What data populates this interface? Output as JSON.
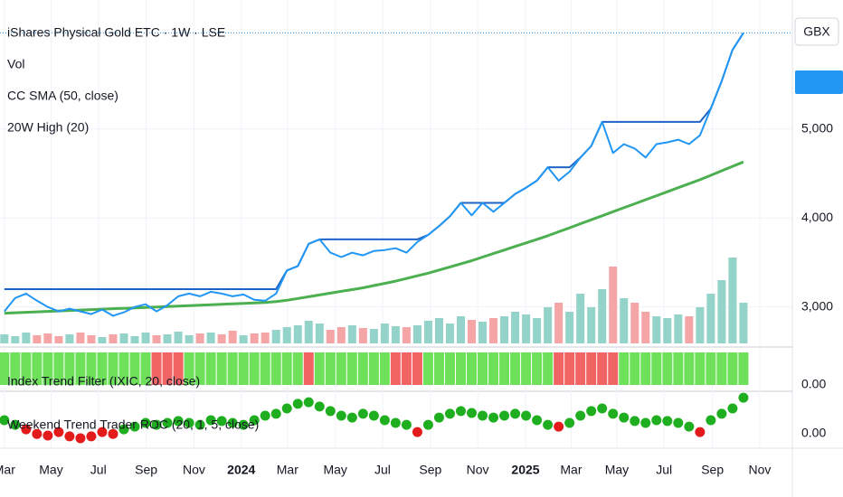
{
  "chart_data": [
    {
      "type": "line",
      "title": "iShares Physical Gold ETC · 1W · LSE",
      "currency": "GBX",
      "x": [
        0,
        2,
        4,
        6,
        8,
        10,
        12,
        14,
        16,
        18,
        20,
        22,
        24,
        26,
        28,
        30,
        32,
        34,
        36,
        38,
        40,
        42,
        44,
        46,
        48,
        50,
        52,
        54,
        56,
        58,
        60,
        62,
        64,
        66,
        68,
        70,
        72,
        74,
        76,
        78,
        80,
        82,
        84,
        86,
        88,
        90,
        92,
        94,
        96,
        98,
        100,
        102,
        104,
        106,
        108,
        110,
        112,
        114,
        116,
        118,
        120,
        122,
        124,
        126,
        128,
        130,
        132,
        134,
        136
      ],
      "xlim": [
        -0.8,
        145
      ],
      "xticks": [
        {
          "value": 0,
          "label": "Mar"
        },
        {
          "value": 8.6,
          "label": "May"
        },
        {
          "value": 17.3,
          "label": "Jul"
        },
        {
          "value": 26.1,
          "label": "Sep"
        },
        {
          "value": 34.9,
          "label": "Nov"
        },
        {
          "value": 43.6,
          "label": "2024"
        },
        {
          "value": 52.1,
          "label": "Mar"
        },
        {
          "value": 60.9,
          "label": "May"
        },
        {
          "value": 69.6,
          "label": "Jul"
        },
        {
          "value": 78.4,
          "label": "Sep"
        },
        {
          "value": 87.1,
          "label": "Nov"
        },
        {
          "value": 95.9,
          "label": "2025"
        },
        {
          "value": 104.3,
          "label": "Mar"
        },
        {
          "value": 112.7,
          "label": "May"
        },
        {
          "value": 121.4,
          "label": "Jul"
        },
        {
          "value": 130.3,
          "label": "Sep"
        },
        {
          "value": 139,
          "label": "Nov"
        }
      ],
      "ylim": [
        2560,
        6450
      ],
      "yticks": [
        {
          "value": 3000,
          "label": "3,000"
        },
        {
          "value": 4000,
          "label": "4,000"
        },
        {
          "value": 5000,
          "label": "5,000"
        }
      ],
      "y2lim": [
        0,
        300
      ],
      "grid": true,
      "series": [
        {
          "type": "bar",
          "name": "Vol",
          "axis": "y2",
          "up_color": "#93d3c9",
          "down_color": "#f5a5a5",
          "values": [
            10,
            8,
            12,
            9,
            11,
            8,
            10,
            12,
            9,
            7,
            10,
            11,
            8,
            12,
            9,
            10,
            13,
            9,
            11,
            12,
            10,
            14,
            9,
            11,
            12,
            15,
            18,
            20,
            25,
            22,
            15,
            18,
            20,
            17,
            16,
            22,
            19,
            18,
            20,
            25,
            28,
            22,
            30,
            26,
            24,
            28,
            30,
            35,
            32,
            28,
            40,
            45,
            35,
            55,
            40,
            60,
            85,
            50,
            45,
            35,
            30,
            28,
            32,
            30,
            40,
            55,
            70,
            95,
            45
          ]
        },
        {
          "type": "line",
          "name": "CC SMA (50, close)",
          "color": "#4caf50",
          "values": [
            2930,
            2935,
            2940,
            2945,
            2950,
            2955,
            2960,
            2965,
            2970,
            2975,
            2980,
            2985,
            2990,
            2995,
            3000,
            3005,
            3010,
            3015,
            3020,
            3025,
            3030,
            3035,
            3040,
            3045,
            3050,
            3060,
            3075,
            3095,
            3115,
            3135,
            3155,
            3175,
            3195,
            3215,
            3240,
            3265,
            3290,
            3320,
            3350,
            3380,
            3415,
            3450,
            3485,
            3520,
            3560,
            3600,
            3640,
            3680,
            3720,
            3760,
            3800,
            3845,
            3890,
            3935,
            3980,
            4025,
            4070,
            4115,
            4160,
            4205,
            4250,
            4295,
            4340,
            4385,
            4430,
            4480,
            4530,
            4580,
            4630
          ]
        },
        {
          "type": "line",
          "name": "20W High (20)",
          "color": "#1e63c9",
          "values": [
            3200,
            3200,
            3200,
            3200,
            3200,
            3200,
            3200,
            3200,
            3200,
            3200,
            3200,
            3200,
            3200,
            3200,
            3200,
            3200,
            3200,
            3200,
            3200,
            3200,
            3200,
            3200,
            3200,
            3200,
            3200,
            3200,
            3410,
            3460,
            3710,
            3760,
            3760,
            3760,
            3760,
            3760,
            3760,
            3760,
            3760,
            3760,
            3760,
            3810,
            3910,
            4020,
            4170,
            4170,
            4170,
            4170,
            4170,
            4270,
            4340,
            4420,
            4570,
            4570,
            4570,
            4680,
            4810,
            5080,
            5080,
            5080,
            5080,
            5080,
            5080,
            5080,
            5080,
            5080,
            5080,
            5230,
            5540,
            5890,
            6080
          ]
        },
        {
          "type": "line",
          "color": "#2196f3",
          "values": [
            2950,
            3100,
            3150,
            3070,
            3000,
            2950,
            2980,
            2950,
            2920,
            2970,
            2900,
            2940,
            3000,
            3030,
            2950,
            3020,
            3120,
            3150,
            3120,
            3170,
            3150,
            3120,
            3140,
            3080,
            3070,
            3150,
            3410,
            3460,
            3710,
            3760,
            3610,
            3560,
            3610,
            3580,
            3630,
            3640,
            3660,
            3610,
            3730,
            3810,
            3910,
            4020,
            4170,
            4030,
            4170,
            4070,
            4170,
            4270,
            4340,
            4420,
            4570,
            4420,
            4520,
            4680,
            4810,
            5080,
            4730,
            4830,
            4780,
            4680,
            4830,
            4850,
            4880,
            4830,
            4930,
            5230,
            5540,
            5890,
            6080
          ]
        }
      ]
    },
    {
      "type": "bar",
      "title": "Index Trend Filter (IXIC, 20, close)",
      "x": [
        0,
        2,
        4,
        6,
        8,
        10,
        12,
        14,
        16,
        18,
        20,
        22,
        24,
        26,
        28,
        30,
        32,
        34,
        36,
        38,
        40,
        42,
        44,
        46,
        48,
        50,
        52,
        54,
        56,
        58,
        60,
        62,
        64,
        66,
        68,
        70,
        72,
        74,
        76,
        78,
        80,
        82,
        84,
        86,
        88,
        90,
        92,
        94,
        96,
        98,
        100,
        102,
        104,
        106,
        108,
        110,
        112,
        114,
        116,
        118,
        120,
        122,
        124,
        126,
        128,
        130,
        132,
        134,
        136
      ],
      "values": [
        1,
        1,
        1,
        1,
        1,
        1,
        1,
        1,
        1,
        1,
        1,
        1,
        1,
        1,
        1,
        1,
        1,
        1,
        1,
        1,
        1,
        1,
        1,
        1,
        1,
        1,
        1,
        1,
        1,
        1,
        1,
        1,
        1,
        1,
        1,
        1,
        1,
        1,
        1,
        1,
        1,
        1,
        1,
        1,
        1,
        1,
        1,
        1,
        1,
        1,
        1,
        1,
        1,
        1,
        1,
        1,
        1,
        1,
        1,
        1,
        1,
        1,
        1,
        1,
        1,
        1,
        1,
        1,
        1
      ],
      "colors": [
        "#6ee05a",
        "#6ee05a",
        "#6ee05a",
        "#6ee05a",
        "#6ee05a",
        "#6ee05a",
        "#6ee05a",
        "#6ee05a",
        "#6ee05a",
        "#6ee05a",
        "#6ee05a",
        "#6ee05a",
        "#6ee05a",
        "#6ee05a",
        "#f06464",
        "#f06464",
        "#f06464",
        "#6ee05a",
        "#6ee05a",
        "#6ee05a",
        "#6ee05a",
        "#6ee05a",
        "#6ee05a",
        "#6ee05a",
        "#6ee05a",
        "#6ee05a",
        "#6ee05a",
        "#6ee05a",
        "#f06464",
        "#6ee05a",
        "#6ee05a",
        "#6ee05a",
        "#6ee05a",
        "#6ee05a",
        "#6ee05a",
        "#6ee05a",
        "#f06464",
        "#f06464",
        "#f06464",
        "#6ee05a",
        "#6ee05a",
        "#6ee05a",
        "#6ee05a",
        "#6ee05a",
        "#6ee05a",
        "#6ee05a",
        "#6ee05a",
        "#6ee05a",
        "#6ee05a",
        "#6ee05a",
        "#6ee05a",
        "#f06464",
        "#f06464",
        "#f06464",
        "#f06464",
        "#f06464",
        "#f06464",
        "#6ee05a",
        "#6ee05a",
        "#6ee05a",
        "#6ee05a",
        "#6ee05a",
        "#6ee05a",
        "#6ee05a",
        "#6ee05a",
        "#6ee05a",
        "#6ee05a",
        "#6ee05a",
        "#6ee05a"
      ],
      "ylim": [
        0,
        1
      ],
      "yticks": [
        {
          "value": 0,
          "label": "0.00"
        }
      ]
    },
    {
      "type": "scatter",
      "title": "Weekend Trend Trader ROC (20, 1, 5, close)",
      "x": [
        0,
        2,
        4,
        6,
        8,
        10,
        12,
        14,
        16,
        18,
        20,
        22,
        24,
        26,
        28,
        30,
        32,
        34,
        36,
        38,
        40,
        42,
        44,
        46,
        48,
        50,
        52,
        54,
        56,
        58,
        60,
        62,
        64,
        66,
        68,
        70,
        72,
        74,
        76,
        78,
        80,
        82,
        84,
        86,
        88,
        90,
        92,
        94,
        96,
        98,
        100,
        102,
        104,
        106,
        108,
        110,
        112,
        114,
        116,
        118,
        120,
        122,
        124,
        126,
        128,
        130,
        132,
        134,
        136
      ],
      "values": [
        0.049,
        0.032,
        0.015,
        -0.002,
        -0.008,
        0.005,
        -0.011,
        -0.018,
        -0.011,
        0.005,
        -0.002,
        0.015,
        0.025,
        0.039,
        0.032,
        0.039,
        0.046,
        0.039,
        0.032,
        0.049,
        0.046,
        0.039,
        0.032,
        0.049,
        0.066,
        0.073,
        0.093,
        0.11,
        0.116,
        0.1,
        0.083,
        0.066,
        0.059,
        0.073,
        0.066,
        0.049,
        0.039,
        0.032,
        0.005,
        0.032,
        0.059,
        0.073,
        0.083,
        0.076,
        0.066,
        0.059,
        0.066,
        0.073,
        0.066,
        0.049,
        0.032,
        0.025,
        0.039,
        0.066,
        0.083,
        0.093,
        0.073,
        0.059,
        0.046,
        0.039,
        0.049,
        0.046,
        0.039,
        0.025,
        0.005,
        0.049,
        0.073,
        0.093,
        0.133
      ],
      "colors": [
        "#1fae1f",
        "#1fae1f",
        "#e31b1b",
        "#e31b1b",
        "#e31b1b",
        "#e31b1b",
        "#e31b1b",
        "#e31b1b",
        "#e31b1b",
        "#e31b1b",
        "#e31b1b",
        "#1fae1f",
        "#1fae1f",
        "#1fae1f",
        "#1fae1f",
        "#1fae1f",
        "#1fae1f",
        "#1fae1f",
        "#1fae1f",
        "#1fae1f",
        "#1fae1f",
        "#1fae1f",
        "#1fae1f",
        "#1fae1f",
        "#1fae1f",
        "#1fae1f",
        "#1fae1f",
        "#1fae1f",
        "#1fae1f",
        "#1fae1f",
        "#1fae1f",
        "#1fae1f",
        "#1fae1f",
        "#1fae1f",
        "#1fae1f",
        "#1fae1f",
        "#1fae1f",
        "#1fae1f",
        "#e31b1b",
        "#1fae1f",
        "#1fae1f",
        "#1fae1f",
        "#1fae1f",
        "#1fae1f",
        "#1fae1f",
        "#1fae1f",
        "#1fae1f",
        "#1fae1f",
        "#1fae1f",
        "#1fae1f",
        "#1fae1f",
        "#e31b1b",
        "#1fae1f",
        "#1fae1f",
        "#1fae1f",
        "#1fae1f",
        "#1fae1f",
        "#1fae1f",
        "#1fae1f",
        "#1fae1f",
        "#1fae1f",
        "#1fae1f",
        "#1fae1f",
        "#1fae1f",
        "#e31b1b",
        "#1fae1f",
        "#1fae1f",
        "#1fae1f",
        "#1fae1f"
      ],
      "ylim": [
        -0.035,
        0.14
      ],
      "yticks": [
        {
          "value": 0,
          "label": "0.00"
        }
      ]
    }
  ]
}
